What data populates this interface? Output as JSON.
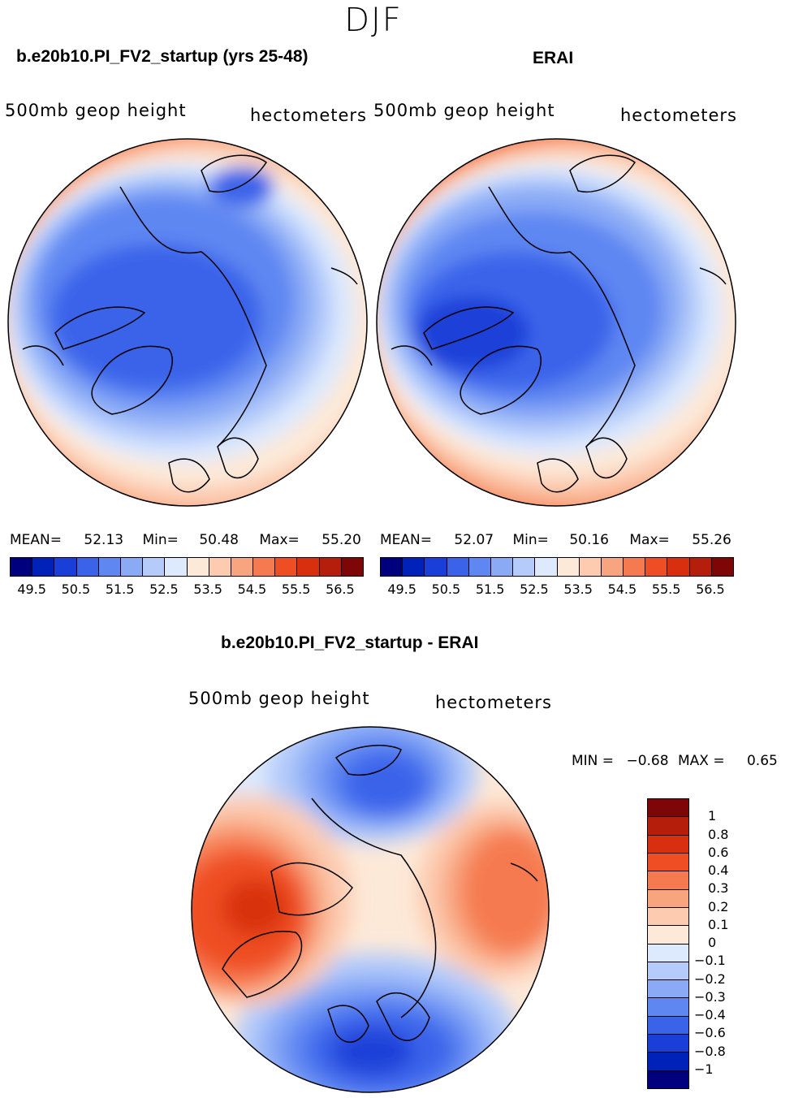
{
  "season": "DJF",
  "panels": [
    {
      "title": "b.e20b10.PI_FV2_startup (yrs 25-48)",
      "variable": "500mb geop height",
      "units": "hectometers",
      "stats": {
        "mean_label": "MEAN=",
        "mean": "52.13",
        "min_label": "Min=",
        "min": "50.48",
        "max_label": "Max=",
        "max": "55.20"
      }
    },
    {
      "title": "ERAI",
      "variable": "500mb geop height",
      "units": "hectometers",
      "stats": {
        "mean_label": "MEAN=",
        "mean": "52.07",
        "min_label": "Min=",
        "min": "50.16",
        "max_label": "Max=",
        "max": "55.26"
      }
    }
  ],
  "diff_panel": {
    "title": "b.e20b10.PI_FV2_startup - ERAI",
    "variable": "500mb geop height",
    "units": "hectometers",
    "stats": {
      "min_label": "MIN =",
      "min": "−0.68",
      "max_label": "MAX =",
      "max": "0.65"
    }
  },
  "colorbar_abs": {
    "colors": [
      "#00007f",
      "#0022b8",
      "#1a3fd8",
      "#3a63ea",
      "#5f87f2",
      "#8aaaf6",
      "#b5ccfa",
      "#dde9fd",
      "#fde9d8",
      "#fccbb0",
      "#f8a47e",
      "#f67a4f",
      "#ef4d23",
      "#d8300f",
      "#b41e0a",
      "#7f0606"
    ],
    "tick_labels": [
      "49.5",
      "50.5",
      "51.5",
      "52.5",
      "53.5",
      "54.5",
      "55.5",
      "56.5"
    ]
  },
  "colorbar_diff": {
    "colors": [
      "#7f0606",
      "#b41e0a",
      "#d8300f",
      "#ef4d23",
      "#f67a4f",
      "#f8a47e",
      "#fccbb0",
      "#fde9d8",
      "#dde9fd",
      "#b5ccfa",
      "#8aaaf6",
      "#5f87f2",
      "#3a63ea",
      "#1a3fd8",
      "#0022b8",
      "#00007f"
    ],
    "tick_labels": [
      "1",
      "0.8",
      "0.6",
      "0.4",
      "0.3",
      "0.2",
      "0.1",
      "0",
      "−0.1",
      "−0.2",
      "−0.3",
      "−0.4",
      "−0.6",
      "−0.8",
      "−1"
    ]
  }
}
